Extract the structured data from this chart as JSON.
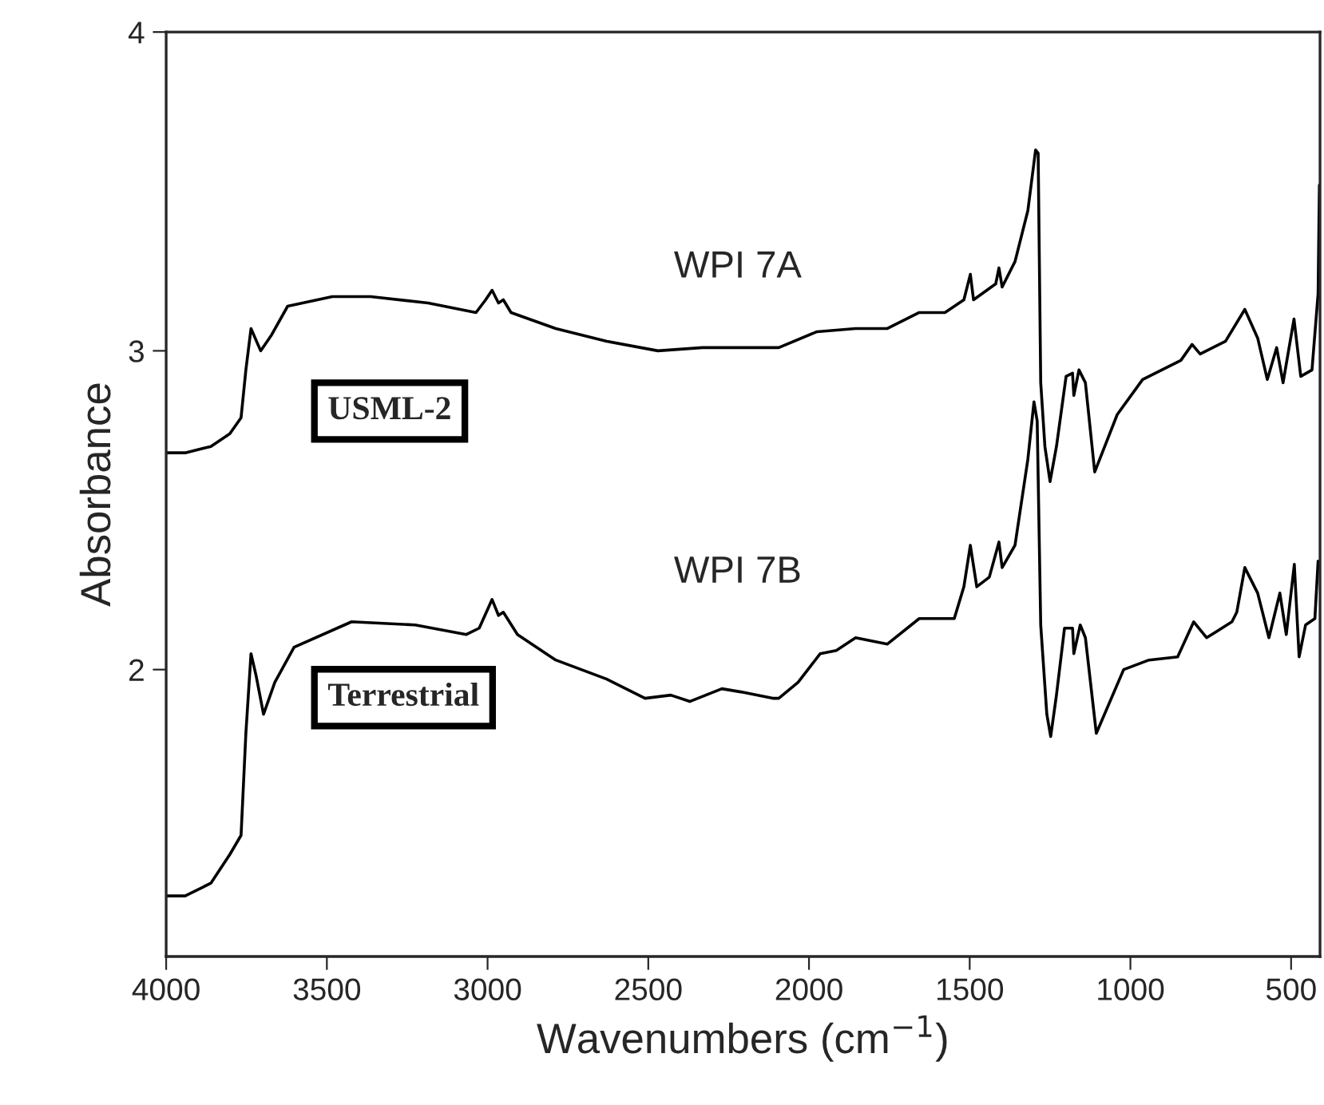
{
  "chart_data": {
    "type": "line",
    "xlabel": "Wavenumbers (cm$^{−1}$)",
    "ylabel": "Absorbance",
    "xlim": [
      4000,
      410
    ],
    "xticks": [
      4000,
      3500,
      3000,
      2500,
      2000,
      1500,
      1000,
      500
    ],
    "ylim": [
      1.1,
      4
    ],
    "yticks": [
      2,
      3,
      4
    ],
    "grid": false,
    "legend": false,
    "marker": "none",
    "line_style": "solid",
    "annotations": [
      "USML-2",
      "Terrestrial"
    ],
    "series": [
      {
        "name": "WPI 7A",
        "color": "#000000",
        "x": [
          4000,
          3941,
          3861,
          3802,
          3767,
          3752,
          3736,
          3706,
          3672,
          3622,
          3483,
          3364,
          3185,
          3036,
          3006,
          2986,
          2966,
          2951,
          2927,
          2788,
          2629,
          2470,
          2331,
          2113,
          2094,
          1975,
          1855,
          1756,
          1657,
          1577,
          1518,
          1498,
          1488,
          1419,
          1409,
          1399,
          1359,
          1319,
          1295,
          1287,
          1279,
          1266,
          1250,
          1230,
          1200,
          1180,
          1176,
          1160,
          1140,
          1111,
          1041,
          962,
          843,
          808,
          783,
          704,
          644,
          604,
          574,
          545,
          525,
          491,
          470,
          435,
          416,
          412
        ],
        "values": [
          2.68,
          2.68,
          2.7,
          2.74,
          2.79,
          2.94,
          3.07,
          3.0,
          3.05,
          3.14,
          3.17,
          3.17,
          3.15,
          3.12,
          3.16,
          3.19,
          3.15,
          3.16,
          3.12,
          3.07,
          3.03,
          3.0,
          3.01,
          3.01,
          3.01,
          3.06,
          3.07,
          3.07,
          3.12,
          3.12,
          3.16,
          3.24,
          3.16,
          3.21,
          3.26,
          3.2,
          3.28,
          3.44,
          3.63,
          3.62,
          2.9,
          2.7,
          2.59,
          2.7,
          2.92,
          2.93,
          2.86,
          2.94,
          2.9,
          2.62,
          2.8,
          2.91,
          2.97,
          3.02,
          2.99,
          3.03,
          3.13,
          3.04,
          2.91,
          3.01,
          2.9,
          3.1,
          2.92,
          2.94,
          3.18,
          3.52
        ]
      },
      {
        "name": "WPI 7B",
        "color": "#000000",
        "x": [
          4000,
          3941,
          3861,
          3802,
          3767,
          3752,
          3736,
          3720,
          3697,
          3662,
          3602,
          3423,
          3225,
          3066,
          3026,
          2986,
          2966,
          2951,
          2907,
          2788,
          2629,
          2510,
          2430,
          2371,
          2271,
          2212,
          2113,
          2094,
          2034,
          1965,
          1915,
          1855,
          1756,
          1657,
          1548,
          1518,
          1498,
          1478,
          1439,
          1409,
          1399,
          1359,
          1319,
          1300,
          1290,
          1279,
          1260,
          1248,
          1230,
          1205,
          1180,
          1176,
          1156,
          1140,
          1106,
          1021,
          942,
          853,
          803,
          763,
          684,
          669,
          644,
          604,
          569,
          535,
          515,
          490,
          475,
          455,
          426,
          416
        ],
        "values": [
          1.29,
          1.29,
          1.33,
          1.42,
          1.48,
          1.8,
          2.05,
          1.98,
          1.86,
          1.96,
          2.07,
          2.15,
          2.14,
          2.11,
          2.13,
          2.22,
          2.17,
          2.18,
          2.11,
          2.03,
          1.97,
          1.91,
          1.92,
          1.9,
          1.94,
          1.93,
          1.91,
          1.91,
          1.96,
          2.05,
          2.06,
          2.1,
          2.08,
          2.16,
          2.16,
          2.26,
          2.39,
          2.26,
          2.29,
          2.4,
          2.32,
          2.39,
          2.66,
          2.84,
          2.78,
          2.14,
          1.86,
          1.79,
          1.92,
          2.13,
          2.13,
          2.05,
          2.14,
          2.1,
          1.8,
          2.0,
          2.03,
          2.04,
          2.15,
          2.1,
          2.15,
          2.18,
          2.32,
          2.24,
          2.1,
          2.24,
          2.11,
          2.33,
          2.04,
          2.14,
          2.16,
          2.34
        ]
      }
    ]
  }
}
